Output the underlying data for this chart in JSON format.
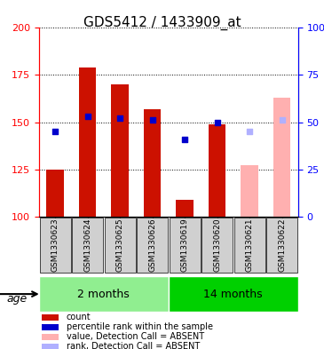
{
  "title": "GDS5412 / 1433909_at",
  "samples": [
    "GSM1330623",
    "GSM1330624",
    "GSM1330625",
    "GSM1330626",
    "GSM1330619",
    "GSM1330620",
    "GSM1330621",
    "GSM1330622"
  ],
  "groups": [
    {
      "label": "2 months",
      "indices": [
        0,
        1,
        2,
        3
      ],
      "color": "#90ee90"
    },
    {
      "label": "14 months",
      "indices": [
        4,
        5,
        6,
        7
      ],
      "color": "#00d000"
    }
  ],
  "count_values": [
    125,
    179,
    170,
    157,
    109,
    149,
    null,
    null
  ],
  "rank_values": [
    145,
    153,
    152,
    151,
    141,
    150,
    null,
    null
  ],
  "count_absent": [
    null,
    null,
    null,
    null,
    null,
    null,
    127,
    163
  ],
  "rank_absent": [
    null,
    null,
    null,
    null,
    null,
    null,
    145,
    151
  ],
  "bar_base": 100,
  "ylim_left": [
    100,
    200
  ],
  "ylim_right": [
    0,
    100
  ],
  "yticks_left": [
    100,
    125,
    150,
    175,
    200
  ],
  "yticks_right": [
    0,
    25,
    50,
    75,
    100
  ],
  "yticklabels_right": [
    "0",
    "25",
    "50",
    "75",
    "100%"
  ],
  "count_color": "#cc1100",
  "rank_color": "#0000cc",
  "count_absent_color": "#ffb0b0",
  "rank_absent_color": "#b0b0ff",
  "bar_width": 0.35,
  "grid_color": "#000000",
  "sample_bg_color": "#d0d0d0",
  "age_label": "age",
  "legend_items": [
    {
      "color": "#cc1100",
      "label": "count"
    },
    {
      "color": "#0000cc",
      "label": "percentile rank within the sample"
    },
    {
      "color": "#ffb0b0",
      "label": "value, Detection Call = ABSENT"
    },
    {
      "color": "#b0b0ff",
      "label": "rank, Detection Call = ABSENT"
    }
  ]
}
